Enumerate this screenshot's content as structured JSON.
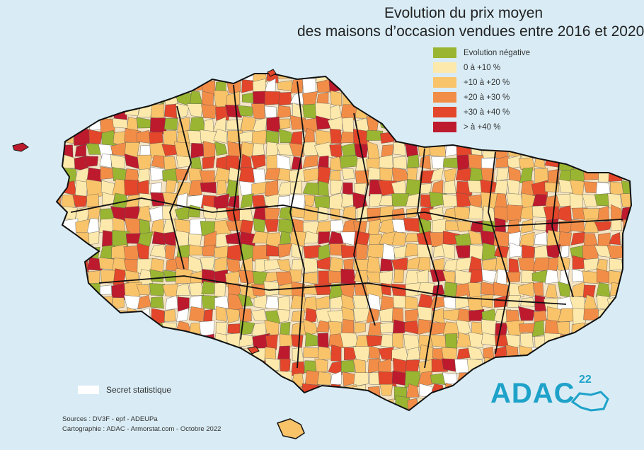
{
  "title": {
    "line1": "Evolution du prix moyen",
    "line2": "des maisons d’occasion vendues entre 2016 et 2020"
  },
  "legend": [
    {
      "label": "Evolution négative",
      "color": "#9ab531"
    },
    {
      "label": "0 à +10 %",
      "color": "#fde9ac"
    },
    {
      "label": "+10 à +20 %",
      "color": "#f9c36a"
    },
    {
      "label": "+20 à +30 %",
      "color": "#f28d48"
    },
    {
      "label": "+30 à +40 %",
      "color": "#e3462a"
    },
    {
      "label": "> à +40 %",
      "color": "#bd1a2e"
    }
  ],
  "secret_label": "Secret statistique",
  "secret_color": "#ffffff",
  "sources": {
    "line1": "Sources : DV3F - epf - ADEUPa",
    "line2": "Cartographie : ADAC - Armorstat.com - Octobre 2022"
  },
  "logo": {
    "text": "ADAC",
    "number": "22",
    "color": "#1ea2c9"
  },
  "colors": {
    "sea": "#d9ecf5",
    "land_bg": "#f4e4c4",
    "border": "#111111"
  }
}
